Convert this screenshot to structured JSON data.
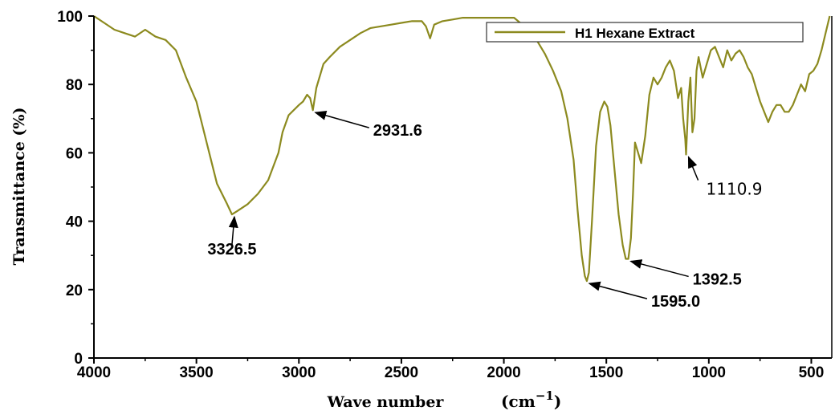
{
  "chart_data": {
    "type": "line",
    "xlabel": "Wave number",
    "xunit_base": "(cm",
    "xunit_exp": "−1",
    "xunit_close": ")",
    "ylabel": "Transmittance (%)",
    "xlim": [
      4000,
      400
    ],
    "ylim": [
      0,
      100
    ],
    "x_reversed": true,
    "x_ticks": [
      "4000",
      "3500",
      "3000",
      "2500",
      "2000",
      "1500",
      "1000",
      "500"
    ],
    "x_tick_values": [
      4000,
      3500,
      3000,
      2500,
      2000,
      1500,
      1000,
      500
    ],
    "y_ticks": [
      "0",
      "20",
      "40",
      "60",
      "80",
      "100"
    ],
    "y_tick_values": [
      0,
      20,
      40,
      60,
      80,
      100
    ],
    "legend_position": "top-right",
    "line_color": "#8c8a1f",
    "series": [
      {
        "name": "H1 Hexane Extract",
        "x": [
          4000,
          3950,
          3900,
          3850,
          3800,
          3750,
          3700,
          3650,
          3600,
          3550,
          3500,
          3450,
          3400,
          3350,
          3326.5,
          3300,
          3250,
          3200,
          3150,
          3100,
          3080,
          3050,
          3000,
          2980,
          2960,
          2945,
          2931.6,
          2915,
          2900,
          2880,
          2850,
          2800,
          2750,
          2700,
          2650,
          2600,
          2550,
          2500,
          2450,
          2400,
          2380,
          2360,
          2340,
          2300,
          2250,
          2200,
          2150,
          2100,
          2050,
          2000,
          1950,
          1900,
          1850,
          1800,
          1760,
          1720,
          1690,
          1660,
          1640,
          1620,
          1605,
          1595,
          1585,
          1570,
          1550,
          1530,
          1510,
          1495,
          1480,
          1460,
          1440,
          1420,
          1405,
          1392.5,
          1380,
          1370,
          1360,
          1345,
          1330,
          1310,
          1290,
          1270,
          1250,
          1230,
          1210,
          1190,
          1170,
          1150,
          1135,
          1125,
          1115,
          1110.9,
          1100,
          1090,
          1080,
          1070,
          1060,
          1050,
          1030,
          1010,
          990,
          970,
          950,
          930,
          910,
          890,
          870,
          850,
          830,
          810,
          790,
          770,
          750,
          730,
          710,
          690,
          670,
          650,
          630,
          610,
          590,
          570,
          550,
          530,
          510,
          490,
          470,
          450,
          430,
          410
        ],
        "y": [
          100,
          98,
          96,
          95,
          94,
          96,
          94,
          93,
          90,
          82,
          75,
          63,
          51,
          45,
          42,
          43,
          45,
          48,
          52,
          60,
          66,
          71,
          74,
          75,
          77,
          76,
          72.5,
          79,
          82,
          86,
          88,
          91,
          93,
          95,
          96.5,
          97,
          97.5,
          98,
          98.5,
          98.5,
          97,
          93.5,
          97.5,
          98.5,
          99,
          99.5,
          99.5,
          99.5,
          99.5,
          99.5,
          99.5,
          97,
          94,
          89,
          84,
          78,
          70,
          58,
          43,
          30,
          24,
          22.5,
          25,
          40,
          62,
          72,
          75,
          73.5,
          68,
          55,
          42,
          33,
          29,
          29,
          35,
          48,
          63,
          60,
          57,
          65,
          77,
          82,
          80,
          82,
          85,
          87,
          84,
          76,
          79,
          70,
          64,
          59.5,
          75,
          82,
          66,
          70,
          84,
          88,
          82,
          86,
          90,
          91,
          88,
          85,
          90,
          87,
          89,
          90,
          88,
          85,
          83,
          79,
          75,
          72,
          69,
          72,
          74,
          74,
          72,
          72,
          74,
          77,
          80,
          78,
          83,
          84,
          86,
          90,
          95,
          100
        ]
      }
    ],
    "annotations": [
      {
        "label": "3326.5",
        "x": 3326.5,
        "y": 42
      },
      {
        "label": "2931.6",
        "x": 2931.6,
        "y": 72.5
      },
      {
        "label": "1595.0",
        "x": 1595.0,
        "y": 22.5
      },
      {
        "label": "1392.5",
        "x": 1392.5,
        "y": 29
      },
      {
        "label": "1110.9",
        "x": 1110.9,
        "y": 59.5
      }
    ]
  }
}
